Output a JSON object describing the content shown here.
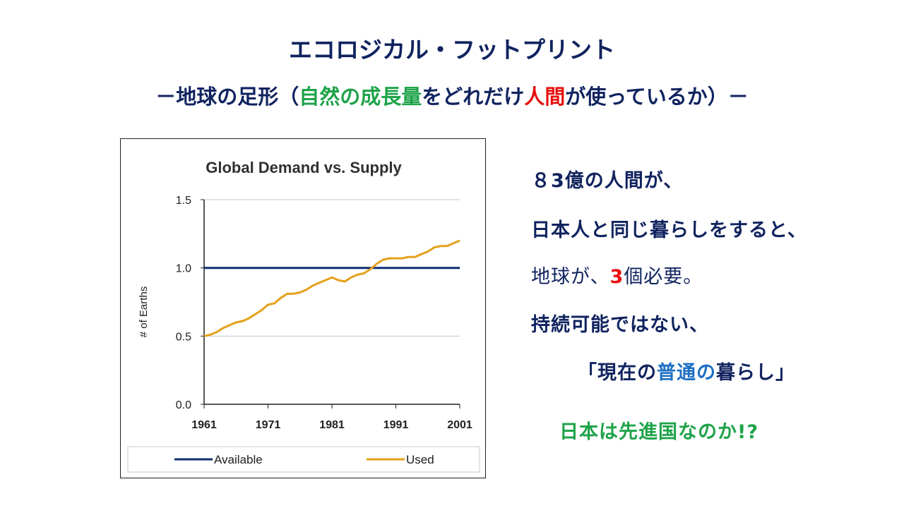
{
  "slide": {
    "title": "エコロジカル・フットプリント",
    "subtitle": {
      "p1": "－地球の足形（",
      "p2": "自然の成長量",
      "p3": "をどれだけ",
      "p4": "人間",
      "p5": "が使っているか）－"
    },
    "lines": {
      "l1": "８3億の人間が、",
      "l2": "日本人と同じ暮らしをすると、",
      "l3a": "地球が、",
      "l3b": "3",
      "l3c": "個必要。",
      "l4": "持続可能ではない、",
      "l5a": "「現在の",
      "l5b": "普通",
      "l5c": "の",
      "l5d": "暮らし」",
      "l6": "日本は先進国なのか!?"
    }
  },
  "colors": {
    "navy": "#10235f",
    "green": "#1fa34a",
    "red": "#e60f0f",
    "blue": "#1f6fc4",
    "available": "#0b2f73",
    "used": "#e3a11b"
  },
  "chart_data": {
    "type": "line",
    "title": "Global Demand vs. Supply",
    "ylabel": "# of Earths",
    "xlabel": "",
    "xlim": [
      1961,
      2001
    ],
    "ylim": [
      0,
      1.5
    ],
    "x_ticks": [
      "1961",
      "1971",
      "1981",
      "1991",
      "2001"
    ],
    "y_ticks": [
      "0.0",
      "0.5",
      "1.0",
      "1.5"
    ],
    "grid": true,
    "legend_position": "bottom",
    "series": [
      {
        "name": "Available",
        "color": "#0b2f73",
        "x": [
          1961,
          2001
        ],
        "y": [
          1.0,
          1.0
        ]
      },
      {
        "name": "Used",
        "color": "#e3a11b",
        "x": [
          1961,
          1962,
          1963,
          1964,
          1965,
          1966,
          1967,
          1968,
          1969,
          1970,
          1971,
          1972,
          1973,
          1974,
          1975,
          1976,
          1977,
          1978,
          1979,
          1980,
          1981,
          1982,
          1983,
          1984,
          1985,
          1986,
          1987,
          1988,
          1989,
          1990,
          1991,
          1992,
          1993,
          1994,
          1995,
          1996,
          1997,
          1998,
          1999,
          2000,
          2001
        ],
        "y": [
          0.5,
          0.51,
          0.53,
          0.56,
          0.58,
          0.6,
          0.61,
          0.63,
          0.66,
          0.69,
          0.73,
          0.74,
          0.78,
          0.81,
          0.81,
          0.82,
          0.84,
          0.87,
          0.89,
          0.91,
          0.93,
          0.91,
          0.9,
          0.93,
          0.95,
          0.96,
          0.99,
          1.03,
          1.06,
          1.07,
          1.07,
          1.07,
          1.08,
          1.08,
          1.1,
          1.12,
          1.15,
          1.16,
          1.16,
          1.18,
          1.2
        ]
      }
    ]
  }
}
